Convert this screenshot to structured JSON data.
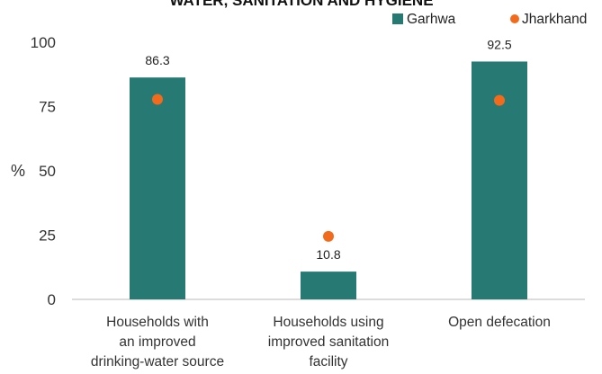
{
  "chart_data": {
    "type": "bar",
    "title": "WATER, SANITATION AND HYGIENE",
    "ylabel": "%",
    "ylim": [
      0,
      100
    ],
    "yticks": [
      0,
      25,
      50,
      75,
      100
    ],
    "categories": [
      [
        "Households with",
        "an improved",
        "drinking-water source"
      ],
      [
        "Households using",
        "improved sanitation",
        "facility"
      ],
      [
        "Open defecation"
      ]
    ],
    "series": [
      {
        "name": "Garhwa",
        "type": "bar",
        "color": "#267a73",
        "values": [
          86.3,
          10.8,
          92.5
        ],
        "labels": [
          "86.3",
          "10.8",
          "92.5"
        ]
      },
      {
        "name": "Jharkhand",
        "type": "scatter",
        "color": "#f26a1b",
        "values": [
          77.8,
          24.5,
          77.4
        ]
      }
    ],
    "grid": false,
    "legend_position": "top-right"
  }
}
